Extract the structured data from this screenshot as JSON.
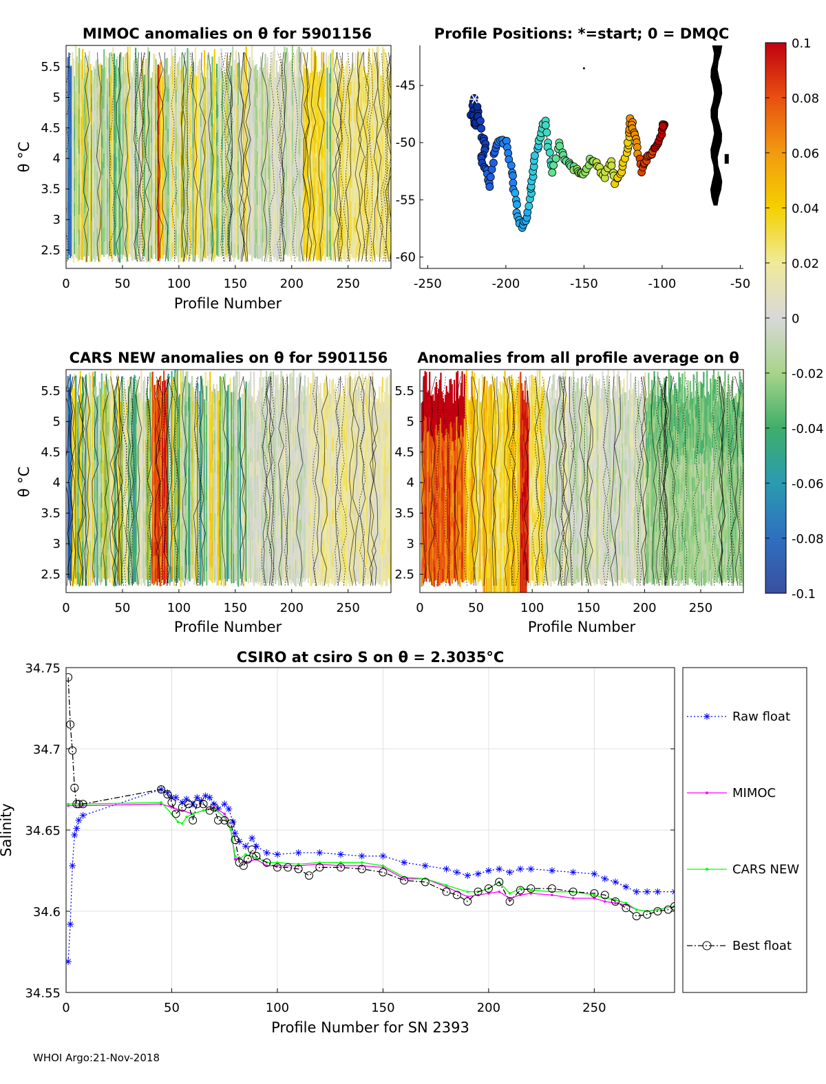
{
  "footer": "WHOI Argo:21-Nov-2018",
  "colorbar": {
    "ticks": [
      "0.1",
      "0.08",
      "0.06",
      "0.04",
      "0.02",
      "0",
      "-0.02",
      "-0.04",
      "-0.06",
      "-0.08",
      "-0.1"
    ],
    "range": [
      -0.1,
      0.1
    ]
  },
  "panels": {
    "mimoc": {
      "title": "MIMOC anomalies on θ  for 5901156",
      "xlabel": "Profile Number",
      "ylabel": "θ °C",
      "xticks": [
        "0",
        "50",
        "100",
        "150",
        "200",
        "250"
      ],
      "yticks": [
        "5.5",
        "5",
        "4.5",
        "4",
        "3.5",
        "3",
        "2.5"
      ]
    },
    "positions": {
      "title": "Profile Positions: *=start; 0 = DMQC",
      "xticks": [
        "-250",
        "-200",
        "-150",
        "-100",
        "-50"
      ],
      "yticks": [
        "-45",
        "-50",
        "-55",
        "-60"
      ]
    },
    "cars": {
      "title": "CARS NEW anomalies on θ for 5901156",
      "xlabel": "Profile Number",
      "ylabel": "θ °C",
      "xticks": [
        "0",
        "50",
        "100",
        "150",
        "200",
        "250"
      ],
      "yticks": [
        "5.5",
        "5",
        "4.5",
        "4",
        "3.5",
        "3",
        "2.5"
      ]
    },
    "allavg": {
      "title": "Anomalies from all profile average on θ",
      "xlabel": "Profile Number",
      "xticks": [
        "0",
        "50",
        "100",
        "150",
        "200",
        "250"
      ],
      "yticks": [
        "5.5",
        "5",
        "4.5",
        "4",
        "3.5",
        "3",
        "2.5"
      ]
    }
  },
  "chart_data": [
    {
      "type": "heatmap",
      "title": "MIMOC anomalies on θ  for 5901156",
      "xlabel": "Profile Number",
      "ylabel": "θ °C",
      "xlim": [
        0,
        288
      ],
      "ylim": [
        2.2,
        5.85
      ],
      "clim": [
        -0.1,
        0.1
      ]
    },
    {
      "type": "scatter",
      "title": "Profile Positions: *=start; 0 = DMQC",
      "xlim": [
        -255,
        -48
      ],
      "ylim": [
        -61,
        -41.5
      ],
      "track": [
        [
          -220,
          -46.2
        ],
        [
          -222,
          -47.5
        ],
        [
          -219,
          -48.5
        ],
        [
          -218,
          -47
        ],
        [
          -215,
          -49.5
        ],
        [
          -213,
          -50.5
        ],
        [
          -216,
          -51.5
        ],
        [
          -212,
          -52.5
        ],
        [
          -210,
          -53.8
        ],
        [
          -208,
          -51
        ],
        [
          -205,
          -49.8
        ],
        [
          -200,
          -50
        ],
        [
          -197,
          -52
        ],
        [
          -195,
          -54
        ],
        [
          -193,
          -56
        ],
        [
          -190,
          -57.5
        ],
        [
          -187,
          -56.5
        ],
        [
          -184,
          -54.5
        ],
        [
          -183,
          -53
        ],
        [
          -181,
          -51
        ],
        [
          -178,
          -49.5
        ],
        [
          -175,
          -48
        ],
        [
          -173,
          -50.5
        ],
        [
          -170,
          -52.5
        ],
        [
          -166,
          -50
        ],
        [
          -162,
          -51.5
        ],
        [
          -158,
          -52
        ],
        [
          -154,
          -52.5
        ],
        [
          -150,
          -52.8
        ],
        [
          -146,
          -51.5
        ],
        [
          -141,
          -52
        ],
        [
          -137,
          -53
        ],
        [
          -133,
          -51.5
        ],
        [
          -130,
          -53.5
        ],
        [
          -126,
          -52.5
        ],
        [
          -123,
          -51
        ],
        [
          -121,
          -49.5
        ],
        [
          -120,
          -48
        ],
        [
          -118,
          -49
        ],
        [
          -116,
          -50.5
        ],
        [
          -113,
          -52.5
        ],
        [
          -110,
          -51.5
        ],
        [
          -107,
          -51
        ],
        [
          -104,
          -50.5
        ],
        [
          -101,
          -49.5
        ],
        [
          -99,
          -48.5
        ]
      ]
    },
    {
      "type": "heatmap",
      "title": "CARS NEW anomalies on θ for 5901156",
      "xlabel": "Profile Number",
      "ylabel": "θ °C",
      "xlim": [
        0,
        288
      ],
      "ylim": [
        2.2,
        5.85
      ],
      "clim": [
        -0.1,
        0.1
      ]
    },
    {
      "type": "heatmap",
      "title": "Anomalies from all profile average on θ",
      "xlabel": "Profile Number",
      "xlim": [
        0,
        288
      ],
      "ylim": [
        2.2,
        5.85
      ],
      "clim": [
        -0.1,
        0.1
      ]
    },
    {
      "type": "line",
      "title": "CSIRO at csiro S on θ = 2.3035°C",
      "xlabel": "Profile Number for SN 2393",
      "ylabel": "Salinity",
      "xlim": [
        0,
        288
      ],
      "ylim": [
        34.55,
        34.75
      ],
      "xticks": [
        "0",
        "50",
        "100",
        "150",
        "200",
        "250"
      ],
      "yticks": [
        "34.75",
        "34.7",
        "34.65",
        "34.6",
        "34.55"
      ],
      "grid": true,
      "legend": "right",
      "series": [
        {
          "name": "Raw float",
          "color": "#0000ff",
          "marker": "*",
          "style": "dotted",
          "x": [
            1,
            2,
            3,
            4,
            5,
            6,
            8,
            45,
            48,
            50,
            52,
            55,
            57,
            60,
            62,
            64,
            66,
            68,
            70,
            72,
            75,
            77,
            79,
            80,
            82,
            85,
            88,
            90,
            95,
            100,
            110,
            120,
            130,
            140,
            150,
            160,
            170,
            180,
            185,
            190,
            195,
            200,
            205,
            210,
            215,
            220,
            230,
            240,
            250,
            255,
            260,
            265,
            270,
            275,
            280,
            288
          ],
          "y": [
            34.569,
            34.592,
            34.628,
            34.647,
            34.651,
            34.656,
            34.659,
            34.675,
            34.673,
            34.67,
            34.67,
            34.667,
            34.669,
            34.666,
            34.67,
            34.668,
            34.671,
            34.67,
            34.666,
            34.663,
            34.666,
            34.663,
            34.655,
            34.648,
            34.643,
            34.64,
            34.645,
            34.64,
            34.636,
            34.635,
            34.636,
            34.636,
            34.635,
            34.634,
            34.634,
            34.63,
            34.628,
            34.626,
            34.624,
            34.622,
            34.623,
            34.625,
            34.626,
            34.624,
            34.626,
            34.626,
            34.625,
            34.624,
            34.623,
            34.62,
            34.618,
            34.615,
            34.612,
            34.612,
            34.612,
            34.612
          ]
        },
        {
          "name": "MIMOC",
          "color": "#ff00ff",
          "marker": ".",
          "style": "solid",
          "x": [
            1,
            8,
            45,
            50,
            55,
            60,
            65,
            70,
            75,
            78,
            80,
            82,
            85,
            90,
            95,
            100,
            110,
            120,
            130,
            140,
            150,
            160,
            170,
            180,
            190,
            195,
            200,
            205,
            210,
            215,
            220,
            230,
            240,
            250,
            255,
            260,
            265,
            270,
            275,
            280,
            288
          ],
          "y": [
            34.665,
            34.665,
            34.666,
            34.664,
            34.662,
            34.66,
            34.662,
            34.664,
            34.66,
            34.65,
            34.632,
            34.633,
            34.63,
            34.632,
            34.628,
            34.628,
            34.628,
            34.629,
            34.628,
            34.628,
            34.627,
            34.62,
            34.62,
            34.615,
            34.609,
            34.61,
            34.611,
            34.612,
            34.608,
            34.61,
            34.611,
            34.61,
            34.608,
            34.608,
            34.606,
            34.605,
            34.604,
            34.601,
            34.6,
            34.601,
            34.603
          ]
        },
        {
          "name": "CARS NEW",
          "color": "#00ff00",
          "marker": ".",
          "style": "solid",
          "x": [
            1,
            8,
            45,
            50,
            53,
            55,
            57,
            60,
            65,
            70,
            75,
            78,
            80,
            82,
            85,
            90,
            95,
            100,
            110,
            120,
            130,
            140,
            150,
            160,
            170,
            180,
            190,
            195,
            200,
            205,
            210,
            215,
            220,
            230,
            240,
            250,
            255,
            260,
            265,
            270,
            275,
            280,
            288
          ],
          "y": [
            34.666,
            34.666,
            34.667,
            34.66,
            34.655,
            34.654,
            34.658,
            34.66,
            34.662,
            34.663,
            34.658,
            34.65,
            34.634,
            34.632,
            34.635,
            34.633,
            34.63,
            34.63,
            34.629,
            34.63,
            34.63,
            34.63,
            34.628,
            34.621,
            34.62,
            34.616,
            34.612,
            34.612,
            34.614,
            34.618,
            34.611,
            34.614,
            34.613,
            34.612,
            34.612,
            34.61,
            34.608,
            34.607,
            34.605,
            34.601,
            34.6,
            34.601,
            34.603
          ]
        },
        {
          "name": "Best float",
          "color": "#000000",
          "marker": "o",
          "style": "dashdot",
          "x": [
            1,
            2,
            3,
            4,
            5,
            6,
            8,
            45,
            48,
            50,
            52,
            55,
            58,
            60,
            62,
            65,
            68,
            70,
            72,
            75,
            78,
            80,
            82,
            84,
            86,
            88,
            90,
            95,
            100,
            105,
            110,
            115,
            120,
            130,
            140,
            150,
            160,
            170,
            180,
            185,
            190,
            195,
            200,
            205,
            210,
            215,
            220,
            230,
            240,
            250,
            255,
            260,
            265,
            270,
            275,
            280,
            285,
            288
          ],
          "y": [
            34.744,
            34.715,
            34.699,
            34.676,
            34.666,
            34.666,
            34.666,
            34.675,
            34.672,
            34.667,
            34.66,
            34.664,
            34.666,
            34.656,
            34.666,
            34.666,
            34.662,
            34.664,
            34.656,
            34.656,
            34.654,
            34.644,
            34.63,
            34.628,
            34.632,
            34.638,
            34.634,
            34.63,
            34.627,
            34.627,
            34.626,
            34.622,
            34.627,
            34.627,
            34.626,
            34.624,
            34.619,
            34.618,
            34.612,
            34.61,
            34.606,
            34.612,
            34.614,
            34.618,
            34.606,
            34.613,
            34.614,
            34.614,
            34.612,
            34.611,
            34.61,
            34.606,
            34.602,
            34.597,
            34.598,
            34.6,
            34.601,
            34.603
          ]
        }
      ]
    }
  ],
  "bottom": {
    "title": "CSIRO at csiro S on θ = 2.3035°C",
    "xlabel": "Profile Number for SN 2393",
    "ylabel": "Salinity",
    "xticks": [
      "0",
      "50",
      "100",
      "150",
      "200",
      "250"
    ],
    "yticks": [
      "34.75",
      "34.7",
      "34.65",
      "34.6",
      "34.55"
    ],
    "legend": [
      "Raw float",
      "MIMOC",
      "CARS NEW",
      "Best float"
    ]
  }
}
